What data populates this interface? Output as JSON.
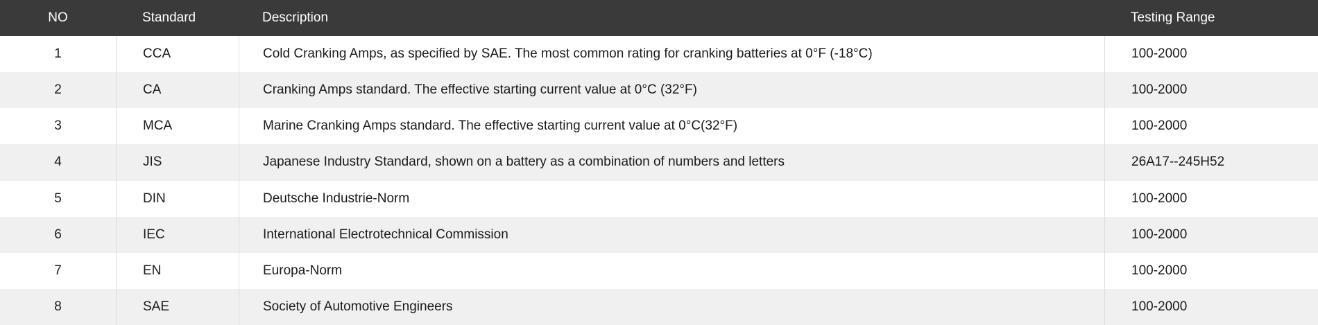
{
  "table": {
    "columns": [
      {
        "key": "no",
        "label": "NO"
      },
      {
        "key": "standard",
        "label": "Standard"
      },
      {
        "key": "description",
        "label": "Description"
      },
      {
        "key": "testing_range",
        "label": "Testing Range"
      }
    ],
    "rows": [
      {
        "no": "1",
        "standard": "CCA",
        "description": "Cold Cranking Amps, as specified by SAE. The most common rating for cranking batteries at 0°F (-18°C)",
        "testing_range": "100-2000"
      },
      {
        "no": "2",
        "standard": "CA",
        "description": "Cranking Amps standard. The effective starting current value at 0°C (32°F)",
        "testing_range": "100-2000"
      },
      {
        "no": "3",
        "standard": "MCA",
        "description": "Marine Cranking Amps standard. The effective starting current value at 0°C(32°F)",
        "testing_range": "100-2000"
      },
      {
        "no": "4",
        "standard": "JIS",
        "description": "Japanese Industry Standard, shown on a battery as a combination of numbers and letters",
        "testing_range": "26A17--245H52"
      },
      {
        "no": "5",
        "standard": "DIN",
        "description": "Deutsche Industrie-Norm",
        "testing_range": "100-2000"
      },
      {
        "no": "6",
        "standard": "IEC",
        "description": "International Electrotechnical Commission",
        "testing_range": "100-2000"
      },
      {
        "no": "7",
        "standard": "EN",
        "description": "Europa-Norm",
        "testing_range": "100-2000"
      },
      {
        "no": "8",
        "standard": "SAE",
        "description": "Society of Automotive Engineers",
        "testing_range": "100-2000"
      }
    ],
    "colors": {
      "header_bg": "#3a3a3a",
      "header_text": "#ffffff",
      "row_bg": "#ffffff",
      "row_alt_bg": "#f0f0f0",
      "divider": "#dcdcdc",
      "body_text": "#1a1a1a"
    }
  }
}
